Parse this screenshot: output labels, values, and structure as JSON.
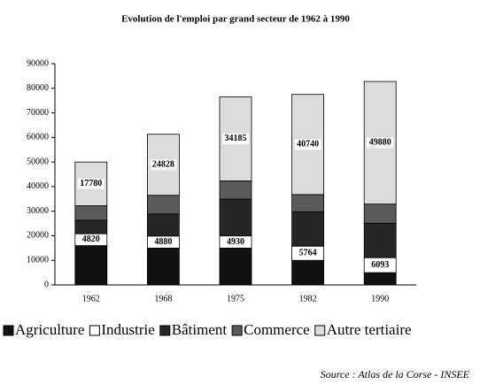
{
  "chart_data": {
    "type": "stacked_bar",
    "title": "Evolution de l'emploi par grand secteur de 1962 à 1990",
    "categories": [
      "1962",
      "1968",
      "1975",
      "1982",
      "1990"
    ],
    "series": [
      {
        "name": "Agriculture",
        "color": "#111111",
        "values": [
          16000,
          15000,
          15000,
          10000,
          5000
        ]
      },
      {
        "name": "Industrie",
        "color": "#ffffff",
        "values": [
          4820,
          4880,
          4930,
          5764,
          6093
        ],
        "labels": true
      },
      {
        "name": "Bâtiment",
        "color": "#262626",
        "values": [
          5500,
          9000,
          15000,
          14000,
          14000
        ]
      },
      {
        "name": "Commerce",
        "color": "#5a5a5a",
        "values": [
          5900,
          7600,
          7400,
          7000,
          7800
        ]
      },
      {
        "name": "Autre tertiaire",
        "color": "#dcdcdc",
        "values": [
          17780,
          24828,
          34185,
          40740,
          49880
        ],
        "labels": true
      }
    ],
    "ylim": [
      0,
      90000
    ],
    "yticks": [
      0,
      10000,
      20000,
      30000,
      40000,
      50000,
      60000,
      70000,
      80000,
      90000
    ],
    "legend": "bottom",
    "source": "Source : Atlas de la Corse - INSEE"
  }
}
